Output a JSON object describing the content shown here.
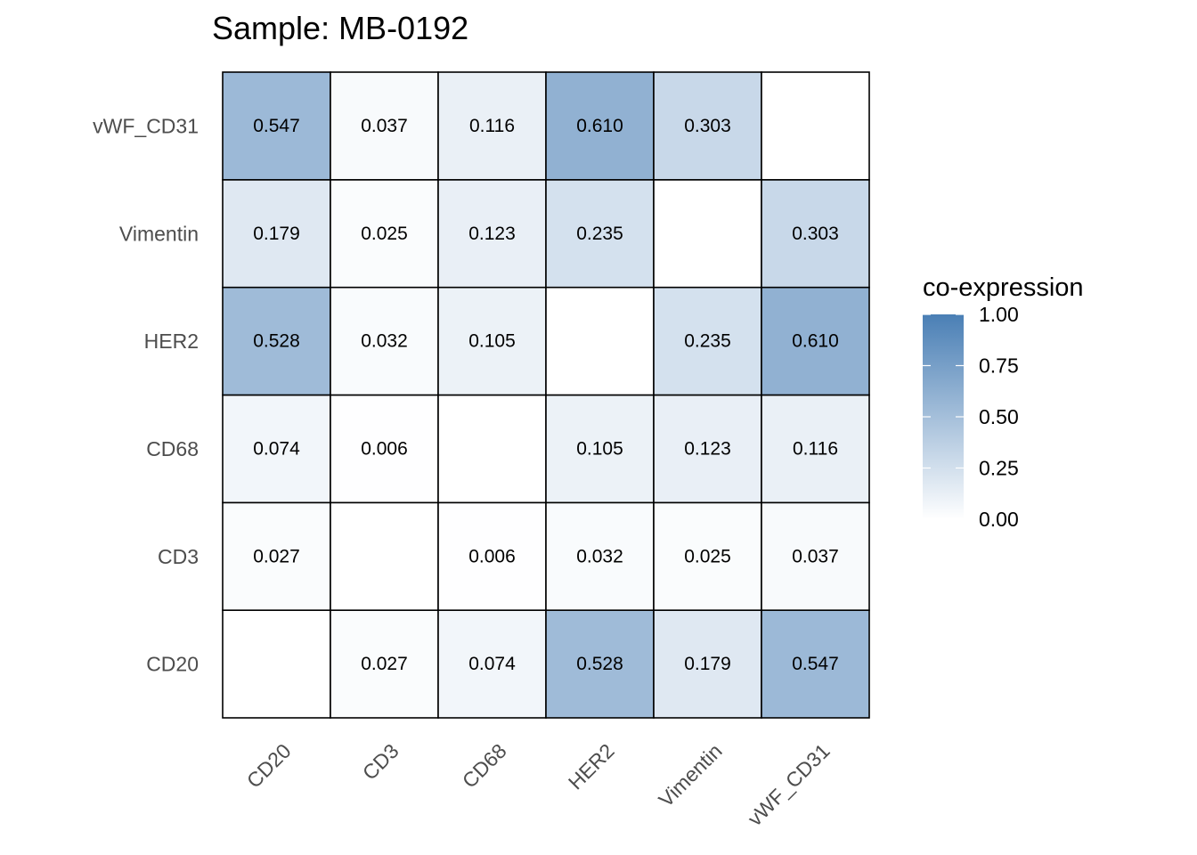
{
  "chart_data": {
    "type": "heatmap",
    "title": "Sample: MB-0192",
    "x_categories": [
      "CD20",
      "CD3",
      "CD68",
      "HER2",
      "Vimentin",
      "vWF_CD31"
    ],
    "y_categories": [
      "CD20",
      "CD3",
      "CD68",
      "HER2",
      "Vimentin",
      "vWF_CD31"
    ],
    "matrix": [
      [
        null,
        0.027,
        0.074,
        0.528,
        0.179,
        0.547
      ],
      [
        0.027,
        null,
        0.006,
        0.032,
        0.025,
        0.037
      ],
      [
        0.074,
        0.006,
        null,
        0.105,
        0.123,
        0.116
      ],
      [
        0.528,
        0.032,
        0.105,
        null,
        0.235,
        0.61
      ],
      [
        0.179,
        0.025,
        0.123,
        0.235,
        null,
        0.303
      ],
      [
        0.547,
        0.037,
        0.116,
        0.61,
        0.303,
        null
      ]
    ],
    "matrix_labels": [
      [
        "",
        "0.027",
        "0.074",
        "0.528",
        "0.179",
        "0.547"
      ],
      [
        "0.027",
        "",
        "0.006",
        "0.032",
        "0.025",
        "0.037"
      ],
      [
        "0.074",
        "0.006",
        "",
        "0.105",
        "0.123",
        "0.116"
      ],
      [
        "0.528",
        "0.032",
        "0.105",
        "",
        "0.235",
        "0.610"
      ],
      [
        "0.179",
        "0.025",
        "0.123",
        "0.235",
        "",
        "0.303"
      ],
      [
        "0.547",
        "0.037",
        "0.116",
        "0.610",
        "0.303",
        ""
      ]
    ],
    "legend": {
      "title": "co-expression",
      "range": [
        0,
        1
      ],
      "ticks": [
        0,
        0.25,
        0.5,
        0.75,
        1.0
      ],
      "tick_labels": [
        "0.00",
        "0.25",
        "0.50",
        "0.75",
        "1.00"
      ],
      "color_low": "#ffffff",
      "color_high": "#4a7fb5",
      "placement": "right"
    },
    "xlabel": "",
    "ylabel": ""
  }
}
